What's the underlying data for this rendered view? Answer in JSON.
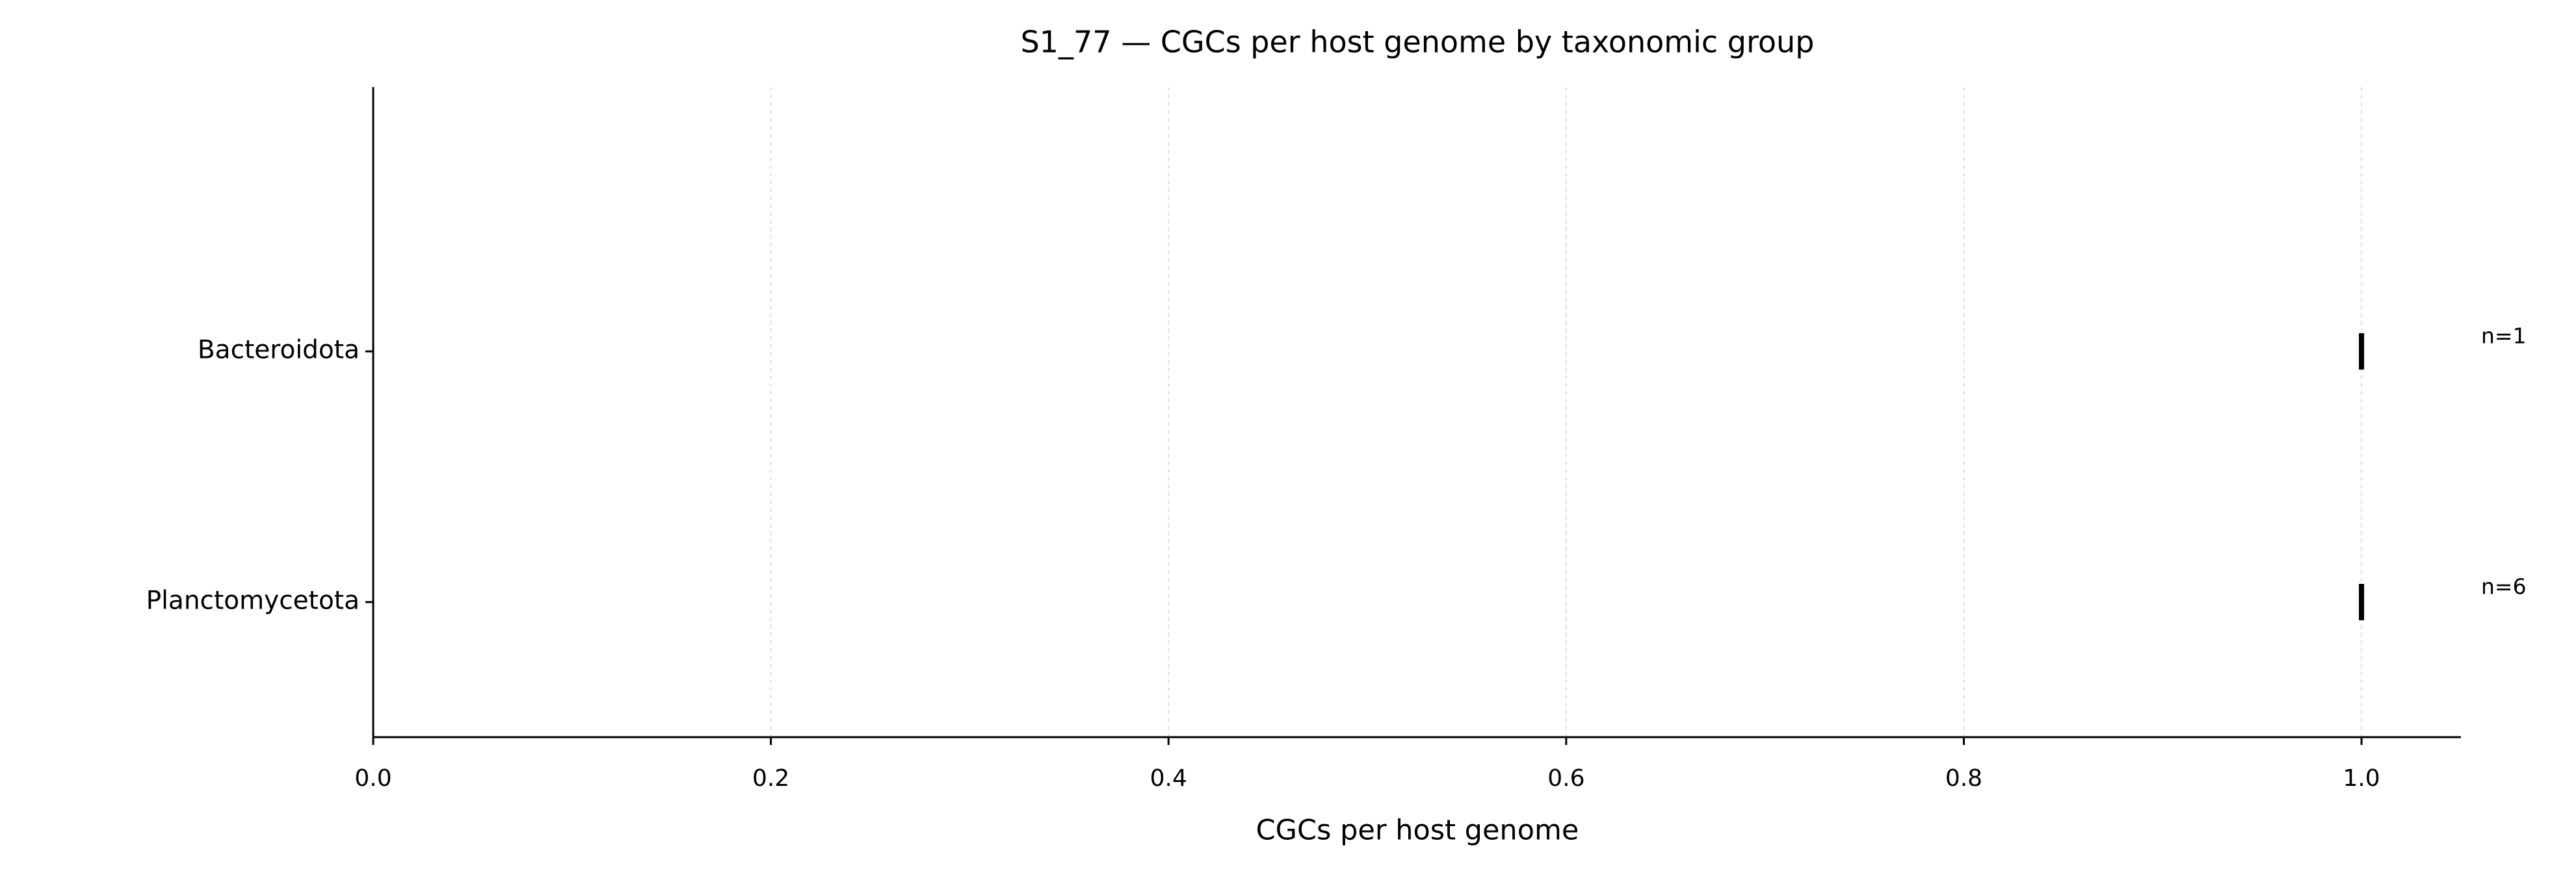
{
  "chart_data": {
    "type": "tick",
    "title": "S1_77 — CGCs per host genome by taxonomic group",
    "x_label": "CGCs per host genome",
    "categories": [
      "Bacteroidota",
      "Planctomycetota"
    ],
    "values": [
      1.0,
      1.0
    ],
    "annotations": [
      "n=1",
      "n=6"
    ],
    "color": "#000000",
    "xlim": [
      0,
      1.05
    ],
    "xticks": [
      {
        "value": 0,
        "label": "0.0"
      },
      0.2,
      0.4,
      0.6,
      0.8,
      {
        "value": 1,
        "label": "1.0"
      }
    ],
    "grid": true
  }
}
